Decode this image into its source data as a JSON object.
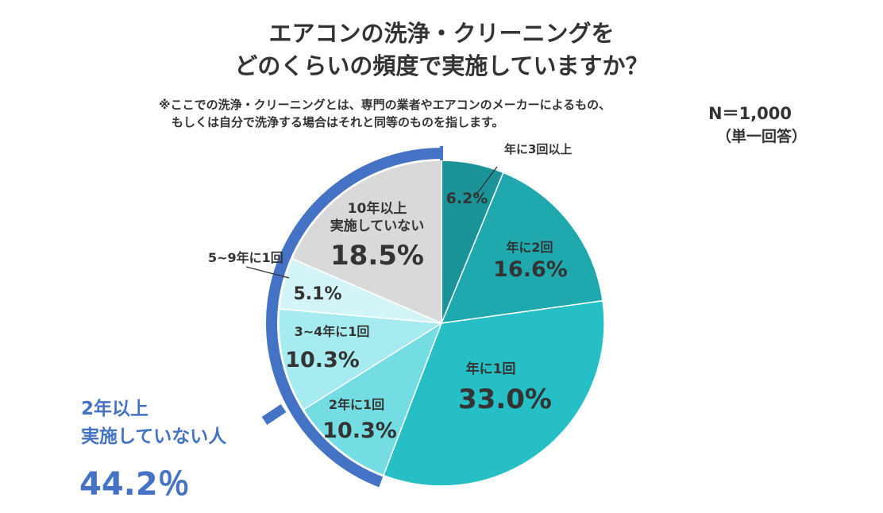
{
  "title_line1": "エアコンの洗浄・クリーニングを",
  "title_line2": "どのくらいの頻度で実施していますか？",
  "note_line1": "※ここでの洗浄・クリーニングとは、専門の業者やエアコンのメーカーによるもの、",
  "note_line2": "もしくは自分で洗浄する場合はそれと同等のものを指します。",
  "sample_size": "N＝1,000",
  "answer_type": "（単一回答）",
  "group_label_line1": "2年以上",
  "group_label_line2": "実施していない人",
  "group_value": "44.2％",
  "chart_data": {
    "type": "pie",
    "title": "エアコンの洗浄・クリーニングをどのくらいの頻度で実施していますか？",
    "unit": "%",
    "slices": [
      {
        "label": "年に3回以上",
        "value": 6.2,
        "value_label": "6.2%",
        "color": "#1A9498"
      },
      {
        "label": "年に2回",
        "value": 16.6,
        "value_label": "16.6%",
        "color": "#1FA9AE"
      },
      {
        "label": "年に1回",
        "value": 33.0,
        "value_label": "33.0%",
        "color": "#26BFC6"
      },
      {
        "label": "2年に1回",
        "value": 10.3,
        "value_label": "10.3%",
        "color": "#74DDE3"
      },
      {
        "label": "3~4年に1回",
        "value": 10.3,
        "value_label": "10.3%",
        "color": "#A6EBEF"
      },
      {
        "label": "5~9年に1回",
        "value": 5.1,
        "value_label": "5.1%",
        "color": "#D4F5F7"
      },
      {
        "label": "10年以上実施していない",
        "label_lines": [
          "10年以上",
          "実施していない"
        ],
        "value": 18.5,
        "value_label": "18.5%",
        "color": "#D9D9D9"
      }
    ],
    "group_arc": {
      "label": "2年以上実施していない人",
      "value": 44.2,
      "value_label": "44.2％",
      "color": "#4472C4"
    }
  }
}
